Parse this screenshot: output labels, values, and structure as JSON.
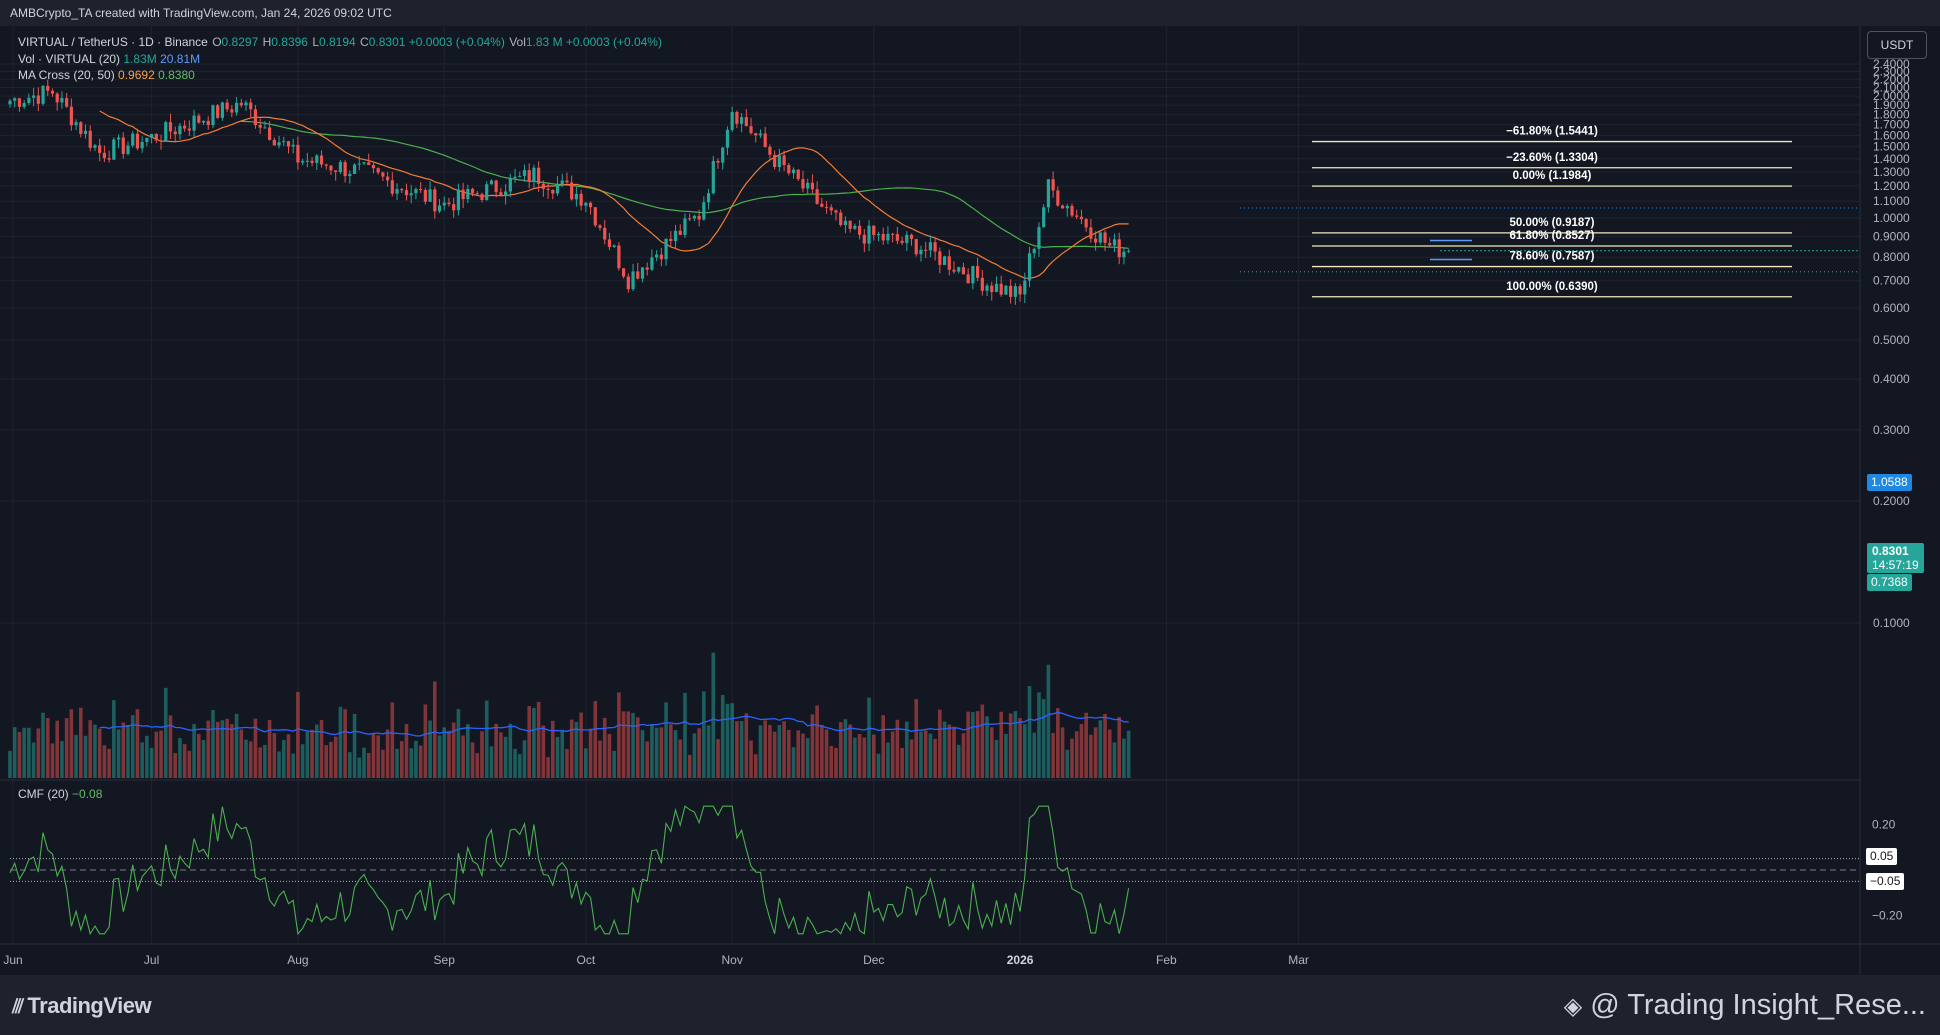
{
  "header": {
    "text": "AMBCrypto_TA created with TradingView.com, Jan 24, 2026 09:02 UTC"
  },
  "legend": {
    "symbol": "VIRTUAL / TetherUS · 1D · Binance",
    "open_l": "O",
    "open": "0.8297",
    "high_l": "H",
    "high": "0.8396",
    "low_l": "L",
    "low": "0.8194",
    "close_l": "C",
    "close": "0.8301",
    "change": "+0.0003 (+0.04%)",
    "vol_l": "Vol",
    "vol": "1.83 M",
    "vol_change": "+0.0003 (+0.04%)",
    "vol_title": "Vol · VIRTUAL (20)",
    "vol_value": "1.83M",
    "vol_ma": "20.81M",
    "ma_title": "MA Cross (20, 50)",
    "ma_fast": "0.9692",
    "ma_slow": "0.8380"
  },
  "currency_button": "USDT",
  "price_axis": {
    "labels": [
      "2.4000",
      "2.3000",
      "2.2000",
      "2.1000",
      "2.0000",
      "1.9000",
      "1.8000",
      "1.7000",
      "1.6000",
      "1.5000",
      "1.4000",
      "1.3000",
      "1.2000",
      "1.1000",
      "1.0000",
      "0.9000",
      "0.8000",
      "0.7000",
      "0.6000",
      "0.5000",
      "0.4000",
      "0.3000",
      "0.2000",
      "0.1000"
    ]
  },
  "price_tags": {
    "level_blue": "1.0588",
    "current_price": "0.8301",
    "countdown": "14:57:19",
    "level_teal": "0.7368"
  },
  "cmf": {
    "title": "CMF (20)",
    "value": "−0.08",
    "axis_labels": [
      "0.20",
      "−0.20"
    ],
    "upper_tag": "0.05",
    "lower_tag": "−0.05"
  },
  "time_axis": {
    "labels": [
      "Jun",
      "Jul",
      "Aug",
      "Sep",
      "Oct",
      "Nov",
      "Dec",
      "2026",
      "Feb",
      "Mar"
    ]
  },
  "fib_levels": [
    {
      "label": "−61.80% (1.5441)",
      "value": 1.5441
    },
    {
      "label": "−23.60% (1.3304)",
      "value": 1.3304
    },
    {
      "label": "0.00% (1.1984)",
      "value": 1.1984
    },
    {
      "label": "50.00% (0.9187)",
      "value": 0.9187
    },
    {
      "label": "61.80% (0.8527)",
      "value": 0.8527
    },
    {
      "label": "78.60% (0.7587)",
      "value": 0.7587
    },
    {
      "label": "100.00% (0.6390)",
      "value": 0.639
    }
  ],
  "footer": {
    "brand": "TradingView",
    "watermark": "@ Trading Insight_Rese..."
  },
  "colors": {
    "up": "#26a69a",
    "down": "#ef5350",
    "ma_fast": "#f57c32",
    "ma_slow": "#4caf50",
    "vol_ma": "#2962ff",
    "cmf": "#4caf50",
    "fib": "#f0e9c0"
  },
  "chart_data": {
    "type": "candlestick",
    "title": "VIRTUAL / TetherUS · 1D · Binance",
    "ylim": [
      0.08,
      2.5
    ],
    "ohlc_key_points": [
      {
        "date": "2025-06-01",
        "close": 1.95
      },
      {
        "date": "2025-06-10",
        "close": 2.05
      },
      {
        "date": "2025-06-20",
        "close": 1.45
      },
      {
        "date": "2025-07-01",
        "close": 1.58
      },
      {
        "date": "2025-07-20",
        "close": 1.92
      },
      {
        "date": "2025-08-01",
        "close": 1.4
      },
      {
        "date": "2025-08-15",
        "close": 1.3
      },
      {
        "date": "2025-09-01",
        "close": 1.08
      },
      {
        "date": "2025-09-20",
        "close": 1.28
      },
      {
        "date": "2025-10-01",
        "close": 1.12
      },
      {
        "date": "2025-10-10",
        "close": 0.71
      },
      {
        "date": "2025-10-25",
        "close": 1.02
      },
      {
        "date": "2025-11-01",
        "close": 1.87
      },
      {
        "date": "2025-11-10",
        "close": 1.4
      },
      {
        "date": "2025-11-25",
        "close": 0.93
      },
      {
        "date": "2025-12-10",
        "close": 0.86
      },
      {
        "date": "2025-12-25",
        "close": 0.69
      },
      {
        "date": "2026-01-01",
        "close": 0.64
      },
      {
        "date": "2026-01-07",
        "close": 1.19
      },
      {
        "date": "2026-01-20",
        "close": 0.85
      },
      {
        "date": "2026-01-24",
        "open": 0.8297,
        "high": 0.8396,
        "low": 0.8194,
        "close": 0.8301
      }
    ],
    "volume_last": "1.83M",
    "volume_ma20": "20.81M",
    "ma_fast_last": 0.9692,
    "ma_slow_last": 0.838,
    "cmf_last": -0.08
  }
}
